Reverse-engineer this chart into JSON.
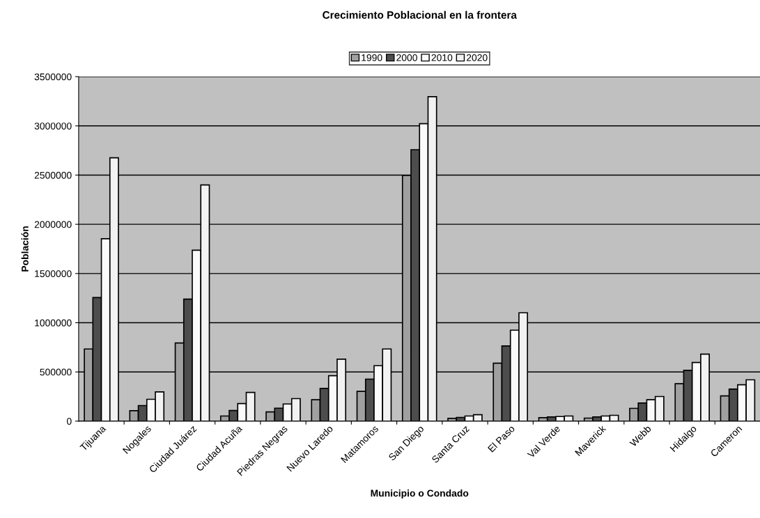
{
  "chart_data": {
    "type": "bar",
    "title": "Crecimiento Poblacional en la frontera",
    "xlabel": "Municipio o Condado",
    "ylabel": "Población",
    "categories": [
      "Tijuana",
      "Nogales",
      "Ciudad Juárez",
      "Ciudad Acuña",
      "Piedras Negras",
      "Nuevo Laredo",
      "Matamoros",
      "San Diego",
      "Santa Cruz",
      "El Paso",
      "Val Verde",
      "Maverick",
      "Webb",
      "Hidalgo",
      "Cameron"
    ],
    "series": [
      {
        "name": "1990",
        "color": "#a0a0a0",
        "values": [
          733000,
          106000,
          794000,
          52000,
          94000,
          217000,
          302000,
          2497000,
          28000,
          589000,
          35000,
          31000,
          130000,
          380000,
          257000
        ]
      },
      {
        "name": "2000",
        "color": "#4d4d4d",
        "values": [
          1256000,
          158000,
          1240000,
          108000,
          132000,
          332000,
          427000,
          2758000,
          38000,
          764000,
          42000,
          42000,
          184000,
          516000,
          325000
        ]
      },
      {
        "name": "2010",
        "color": "#fafafa",
        "values": [
          1853000,
          222000,
          1737000,
          179000,
          174000,
          462000,
          563000,
          3022000,
          52000,
          924000,
          47000,
          52000,
          217000,
          596000,
          370000
        ]
      },
      {
        "name": "2020",
        "color": "#f2f2f2",
        "values": [
          2676000,
          297000,
          2400000,
          292000,
          229000,
          629000,
          733000,
          3296000,
          66000,
          1101000,
          52000,
          59000,
          250000,
          681000,
          420000
        ]
      }
    ],
    "ylim": [
      0,
      3500000
    ],
    "yticks": [
      0,
      500000,
      1000000,
      1500000,
      2000000,
      2500000,
      3000000,
      3500000
    ],
    "grid": "y",
    "legend": "top"
  }
}
